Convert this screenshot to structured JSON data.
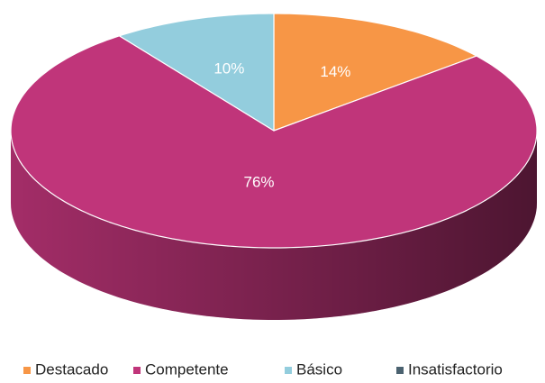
{
  "chart_data": {
    "type": "pie",
    "categories": [
      "Destacado",
      "Competente",
      "Básico",
      "Insatisfactorio"
    ],
    "values": [
      14,
      76,
      10,
      0
    ],
    "value_labels": [
      "14%",
      "76%",
      "10%",
      null
    ],
    "colors": [
      "#f79646",
      "#c0357a",
      "#93cddd",
      "#4b6270"
    ],
    "legend": "bottom"
  }
}
